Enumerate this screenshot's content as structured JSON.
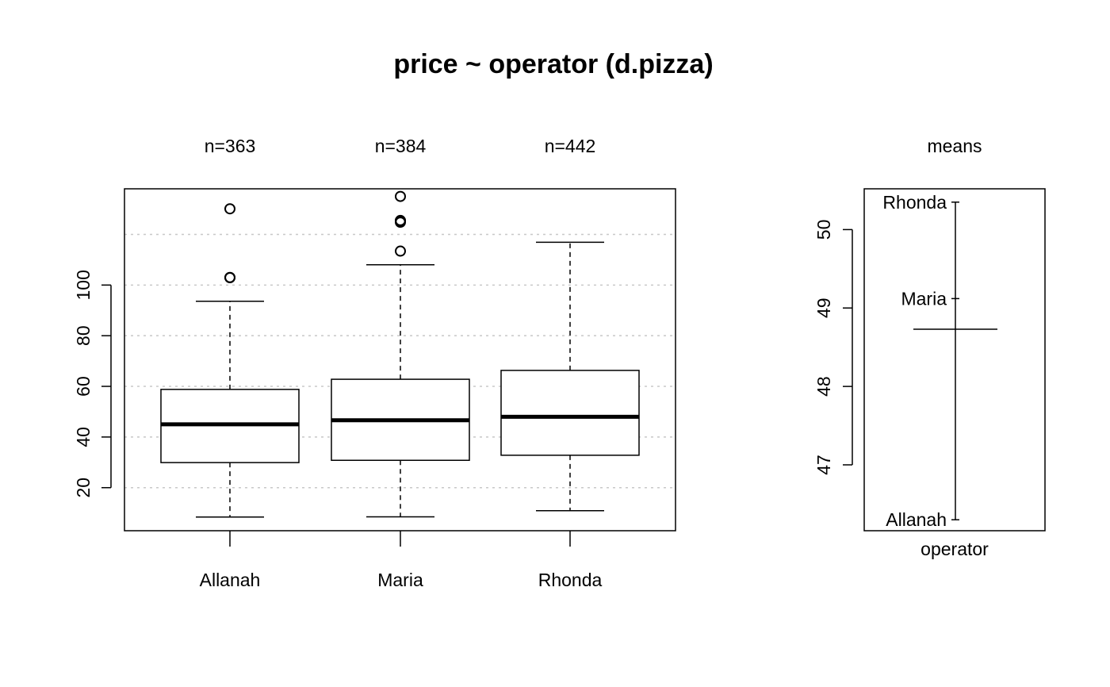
{
  "chart_data": [
    {
      "type": "box",
      "title": "price ~ operator (d.pizza)",
      "xlabel": "",
      "ylabel": "",
      "categories": [
        "Allanah",
        "Maria",
        "Rhonda"
      ],
      "counts": [
        "n=363",
        "n=384",
        "n=442"
      ],
      "ylim": [
        3,
        138
      ],
      "yticks": [
        20,
        40,
        60,
        80,
        100
      ],
      "grid_y": [
        20,
        40,
        60,
        80,
        100,
        120
      ],
      "grid": true,
      "boxes": [
        {
          "name": "Allanah",
          "whisker_low": 8.4,
          "q1": 29.9,
          "median": 45.0,
          "q3": 58.8,
          "whisker_high": 93.6,
          "outliers": [
            102.9,
            103.0,
            130.1
          ]
        },
        {
          "name": "Maria",
          "whisker_low": 8.5,
          "q1": 30.8,
          "median": 46.6,
          "q3": 62.8,
          "whisker_high": 108.0,
          "outliers": [
            113.4,
            124.8,
            125.3,
            125.5,
            135.0
          ]
        },
        {
          "name": "Rhonda",
          "whisker_low": 10.9,
          "q1": 32.8,
          "median": 48.0,
          "q3": 66.3,
          "whisker_high": 116.9,
          "outliers": []
        }
      ]
    },
    {
      "type": "means",
      "title": "means",
      "xlabel": "operator",
      "ylim": [
        46.16,
        50.52
      ],
      "yticks": [
        47,
        48,
        49,
        50
      ],
      "grand_mean": 48.73,
      "points": [
        {
          "name": "Allanah",
          "value": 46.3
        },
        {
          "name": "Maria",
          "value": 49.12
        },
        {
          "name": "Rhonda",
          "value": 50.35
        }
      ]
    }
  ]
}
